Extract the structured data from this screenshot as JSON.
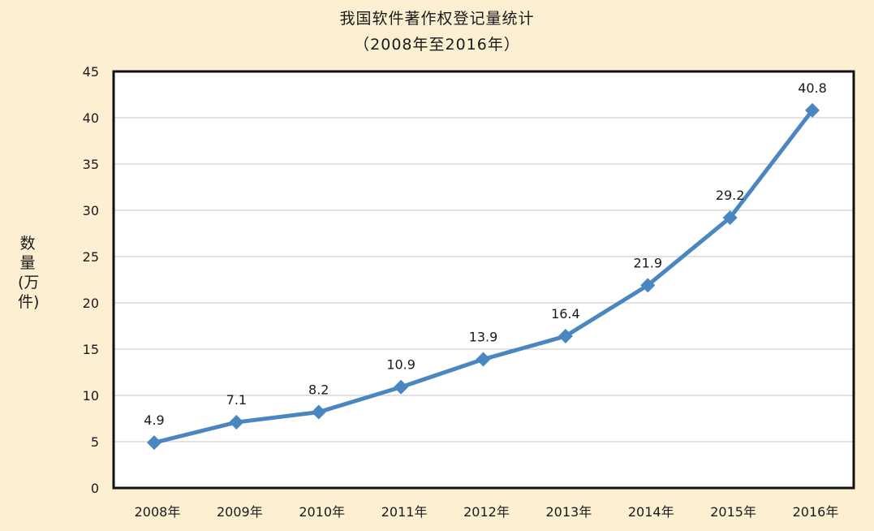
{
  "chart_data": {
    "type": "line",
    "title": "我国软件著作权登记量统计",
    "subtitle": "（2008年至2016年）",
    "xlabel": "",
    "ylabel": "数量(万件)",
    "categories": [
      "2008年",
      "2009年",
      "2010年",
      "2011年",
      "2012年",
      "2013年",
      "2014年",
      "2015年",
      "2016年"
    ],
    "values": [
      4.9,
      7.1,
      8.2,
      10.9,
      13.9,
      16.4,
      21.9,
      29.2,
      40.8
    ],
    "data_labels": [
      "4.9",
      "7.1",
      "8.2",
      "10.9",
      "13.9",
      "16.4",
      "21.9",
      "29.2",
      "40.8"
    ],
    "yticks": [
      "0",
      "5",
      "10",
      "15",
      "20",
      "25",
      "30",
      "35",
      "40",
      "45"
    ],
    "ylim": [
      0,
      45
    ],
    "grid": true,
    "legend": "none",
    "colors": {
      "series": "#4a86c0",
      "grid": "#d0d0d0",
      "plot_background": "#ffffff",
      "page_background": "#fdefd2",
      "frame": "#111111"
    }
  }
}
